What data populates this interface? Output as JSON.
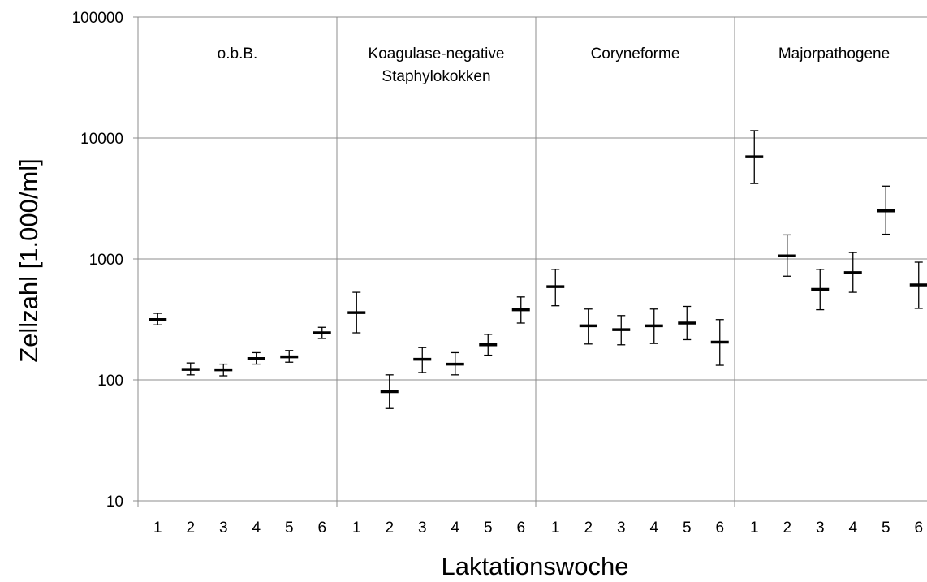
{
  "chart_data": {
    "type": "scatter",
    "title": "",
    "xlabel": "Laktationswoche",
    "ylabel": "Zellzahl [1.000/ml]",
    "yscale": "log",
    "ylim": [
      10,
      100000
    ],
    "yticks": [
      "10",
      "100",
      "1000",
      "10000",
      "100000"
    ],
    "grid": true,
    "legend": "none",
    "groups": [
      {
        "label_lines": [
          "o.b.B."
        ],
        "weeks": [
          "1",
          "2",
          "3",
          "4",
          "5",
          "6"
        ],
        "mean": [
          315,
          122,
          121,
          150,
          155,
          245
        ],
        "low": [
          285,
          110,
          108,
          135,
          140,
          220
        ],
        "high": [
          355,
          138,
          135,
          168,
          175,
          272
        ]
      },
      {
        "label_lines": [
          "Koagulase-negative",
          "Staphylokokken"
        ],
        "weeks": [
          "1",
          "2",
          "3",
          "4",
          "5",
          "6"
        ],
        "mean": [
          360,
          80,
          148,
          135,
          195,
          380
        ],
        "low": [
          245,
          58,
          115,
          110,
          160,
          295
        ],
        "high": [
          530,
          110,
          185,
          168,
          238,
          485
        ]
      },
      {
        "label_lines": [
          "Coryneforme"
        ],
        "weeks": [
          "1",
          "2",
          "3",
          "4",
          "5",
          "6"
        ],
        "mean": [
          590,
          280,
          260,
          280,
          295,
          205
        ],
        "low": [
          410,
          198,
          195,
          200,
          215,
          132
        ],
        "high": [
          820,
          385,
          340,
          385,
          405,
          315
        ]
      },
      {
        "label_lines": [
          "Majorpathogene"
        ],
        "weeks": [
          "1",
          "2",
          "3",
          "4",
          "5",
          "6"
        ],
        "mean": [
          7000,
          1060,
          560,
          770,
          2500,
          610
        ],
        "low": [
          4200,
          720,
          380,
          530,
          1600,
          390
        ],
        "high": [
          11500,
          1580,
          820,
          1130,
          4000,
          940
        ]
      }
    ]
  }
}
